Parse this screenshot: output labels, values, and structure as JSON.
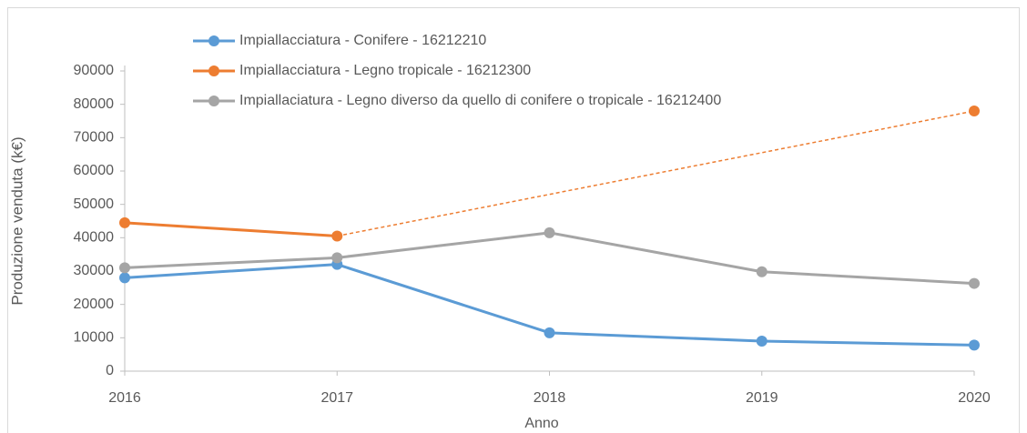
{
  "chart_data": {
    "type": "line",
    "x_label": "Anno",
    "y_label": "Produzione venduta (k€)",
    "x": [
      2016,
      2017,
      2018,
      2019,
      2020
    ],
    "xlim": [
      2016,
      2020
    ],
    "xticks": [
      2016,
      2017,
      2018,
      2019,
      2020
    ],
    "ylim": [
      0,
      90000
    ],
    "yticks": [
      0,
      10000,
      20000,
      30000,
      40000,
      50000,
      60000,
      70000,
      80000,
      90000
    ],
    "grid": false,
    "legend": "top-left",
    "series": [
      {
        "name": "Impiallacciatura - Conifere - 16212210",
        "color": "#5b9bd5",
        "values": [
          28000,
          32000,
          11500,
          9000,
          7800
        ]
      },
      {
        "name": "Impiallacciatura - Legno tropicale - 16212300",
        "color": "#ed7d31",
        "values": [
          44500,
          40500,
          null,
          null,
          78000
        ],
        "gap_line": "dashed"
      },
      {
        "name": "Impiallaciatura - Legno diverso da quello di conifere o tropicale - 16212400",
        "color": "#a5a5a5",
        "values": [
          31000,
          34000,
          41500,
          29800,
          26300
        ]
      }
    ]
  }
}
